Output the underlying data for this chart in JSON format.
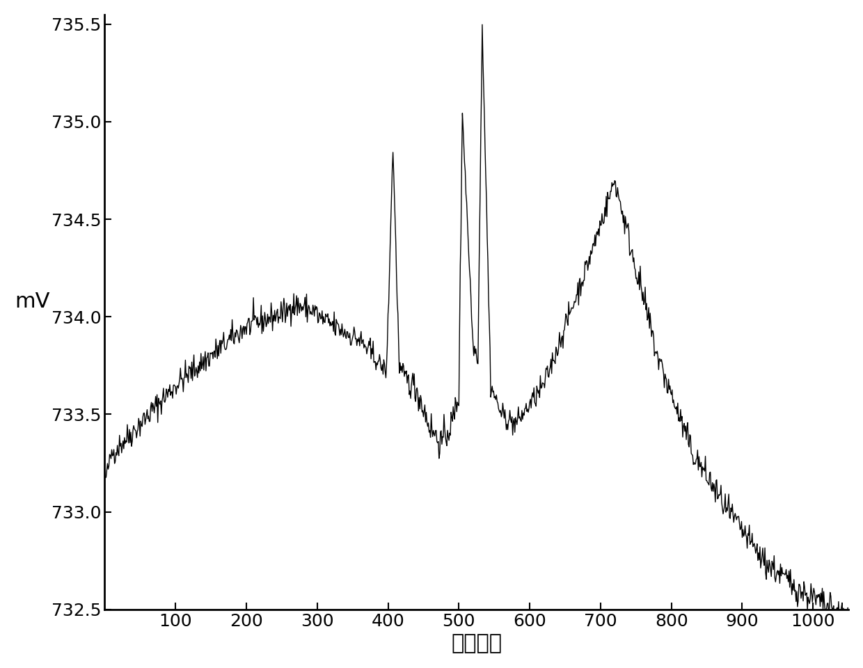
{
  "xlim": [
    0,
    1050
  ],
  "ylim": [
    732.5,
    735.55
  ],
  "xlabel": "采样点数",
  "ylabel": "mV",
  "xticks": [
    100,
    200,
    300,
    400,
    500,
    600,
    700,
    800,
    900,
    1000
  ],
  "yticks": [
    732.5,
    733.0,
    733.5,
    734.0,
    734.5,
    735.0,
    735.5
  ],
  "line_color": "#000000",
  "background_color": "#ffffff",
  "line_width": 1.0,
  "noise_seed": 42
}
